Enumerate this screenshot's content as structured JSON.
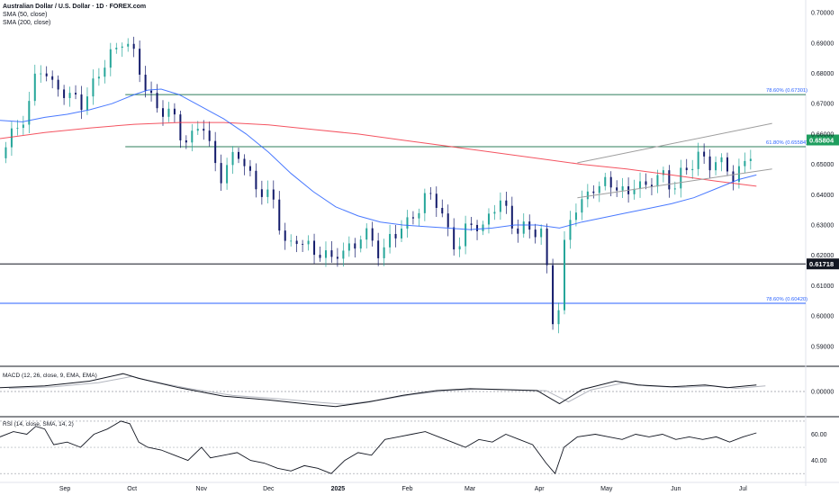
{
  "header": {
    "symbol": "Australian Dollar / U.S. Dollar · 1D · FOREX.com",
    "sma50": "SMA (50, close)",
    "sma200": "SMA (200, close)"
  },
  "macd": {
    "label": "MACD (12, 26, close, 9, EMA, EMA)"
  },
  "rsi": {
    "label": "RSI (14, close, SMA, 14, 2)"
  },
  "colors": {
    "up": "#26a69a",
    "down": "#131b6b",
    "sma50": "#2962ff",
    "sma200": "#f23645",
    "fib": "#2e7d5b",
    "channel": "#9e9e9e",
    "price_tag": "#1e9e5e"
  },
  "chart_data": {
    "type": "candlestick",
    "y_ticks": [
      "0.70000",
      "0.69000",
      "0.68000",
      "0.67000",
      "0.66000",
      "0.65000",
      "0.64000",
      "0.63000",
      "0.62000",
      "0.61000",
      "0.60000",
      "0.59000"
    ],
    "ylim": [
      0.5855,
      0.703
    ],
    "x_ticks": [
      {
        "label": "Sep",
        "day": 29
      },
      {
        "label": "Oct",
        "day": 59
      },
      {
        "label": "Nov",
        "day": 90
      },
      {
        "label": "Dec",
        "day": 120
      },
      {
        "label": "2025",
        "day": 151
      },
      {
        "label": "Feb",
        "day": 182
      },
      {
        "label": "Mar",
        "day": 210
      },
      {
        "label": "Apr",
        "day": 241
      },
      {
        "label": "May",
        "day": 271
      },
      {
        "label": "Jun",
        "day": 302
      },
      {
        "label": "Jul",
        "day": 332
      }
    ],
    "xlim": [
      0,
      360
    ],
    "levels": [
      {
        "label": "78.60% (0.67301)",
        "value": 0.67301,
        "style": "fib"
      },
      {
        "label": "61.80% (0.65584)",
        "value": 0.65584,
        "style": "fib"
      },
      {
        "label": "78.60% (0.60420)",
        "value": 0.6042,
        "style": "fib-blue"
      },
      {
        "label": "0.61718",
        "value": 0.61718,
        "style": "black-tag"
      }
    ],
    "last_price": {
      "label": "0.65804",
      "value": 0.65804
    },
    "close_path": [
      [
        0,
        0.652
      ],
      [
        4,
        0.659
      ],
      [
        8,
        0.661
      ],
      [
        12,
        0.67
      ],
      [
        16,
        0.678
      ],
      [
        20,
        0.681
      ],
      [
        24,
        0.676
      ],
      [
        28,
        0.675
      ],
      [
        32,
        0.671
      ],
      [
        36,
        0.669
      ],
      [
        40,
        0.676
      ],
      [
        44,
        0.679
      ],
      [
        48,
        0.684
      ],
      [
        52,
        0.688
      ],
      [
        55,
        0.693
      ],
      [
        58,
        0.689
      ],
      [
        61,
        0.683
      ],
      [
        64,
        0.676
      ],
      [
        67,
        0.673
      ],
      [
        70,
        0.67
      ],
      [
        74,
        0.667
      ],
      [
        78,
        0.664
      ],
      [
        82,
        0.658
      ],
      [
        86,
        0.66
      ],
      [
        90,
        0.664
      ],
      [
        93,
        0.656
      ],
      [
        96,
        0.651
      ],
      [
        99,
        0.647
      ],
      [
        102,
        0.65
      ],
      [
        106,
        0.653
      ],
      [
        110,
        0.649
      ],
      [
        114,
        0.644
      ],
      [
        118,
        0.64
      ],
      [
        122,
        0.637
      ],
      [
        126,
        0.628
      ],
      [
        129,
        0.623
      ],
      [
        132,
        0.625
      ],
      [
        136,
        0.623
      ],
      [
        140,
        0.621
      ],
      [
        144,
        0.623
      ],
      [
        148,
        0.617
      ],
      [
        151,
        0.62
      ],
      [
        154,
        0.622
      ],
      [
        158,
        0.624
      ],
      [
        162,
        0.627
      ],
      [
        166,
        0.624
      ],
      [
        170,
        0.621
      ],
      [
        174,
        0.626
      ],
      [
        178,
        0.627
      ],
      [
        182,
        0.63
      ],
      [
        186,
        0.636
      ],
      [
        190,
        0.639
      ],
      [
        194,
        0.638
      ],
      [
        198,
        0.633
      ],
      [
        202,
        0.625
      ],
      [
        205,
        0.623
      ],
      [
        208,
        0.627
      ],
      [
        212,
        0.631
      ],
      [
        216,
        0.63
      ],
      [
        220,
        0.635
      ],
      [
        224,
        0.637
      ],
      [
        227,
        0.633
      ],
      [
        230,
        0.63
      ],
      [
        234,
        0.629
      ],
      [
        238,
        0.626
      ],
      [
        241,
        0.629
      ],
      [
        243,
        0.627
      ],
      [
        245,
        0.612
      ],
      [
        247,
        0.6
      ],
      [
        249,
        0.596
      ],
      [
        251,
        0.615
      ],
      [
        253,
        0.626
      ],
      [
        256,
        0.636
      ],
      [
        260,
        0.638
      ],
      [
        264,
        0.642
      ],
      [
        268,
        0.641
      ],
      [
        272,
        0.646
      ],
      [
        276,
        0.643
      ],
      [
        280,
        0.638
      ],
      [
        284,
        0.644
      ],
      [
        288,
        0.643
      ],
      [
        292,
        0.646
      ],
      [
        296,
        0.645
      ],
      [
        300,
        0.642
      ],
      [
        304,
        0.648
      ],
      [
        308,
        0.648
      ],
      [
        312,
        0.652
      ],
      [
        316,
        0.651
      ],
      [
        320,
        0.652
      ],
      [
        324,
        0.648
      ],
      [
        328,
        0.645
      ],
      [
        332,
        0.651
      ],
      [
        336,
        0.655
      ],
      [
        338,
        0.658
      ]
    ],
    "sma50_path": [
      [
        0,
        0.6645
      ],
      [
        10,
        0.664
      ],
      [
        20,
        0.6655
      ],
      [
        30,
        0.6665
      ],
      [
        40,
        0.668
      ],
      [
        50,
        0.67
      ],
      [
        60,
        0.673
      ],
      [
        66,
        0.6745
      ],
      [
        72,
        0.6748
      ],
      [
        80,
        0.673
      ],
      [
        90,
        0.669
      ],
      [
        100,
        0.665
      ],
      [
        110,
        0.66
      ],
      [
        120,
        0.654
      ],
      [
        130,
        0.647
      ],
      [
        140,
        0.641
      ],
      [
        150,
        0.636
      ],
      [
        160,
        0.633
      ],
      [
        170,
        0.631
      ],
      [
        180,
        0.63
      ],
      [
        190,
        0.6295
      ],
      [
        200,
        0.629
      ],
      [
        210,
        0.6285
      ],
      [
        220,
        0.629
      ],
      [
        230,
        0.63
      ],
      [
        240,
        0.63
      ],
      [
        250,
        0.629
      ],
      [
        260,
        0.631
      ],
      [
        270,
        0.6325
      ],
      [
        280,
        0.634
      ],
      [
        290,
        0.6355
      ],
      [
        300,
        0.637
      ],
      [
        310,
        0.639
      ],
      [
        320,
        0.642
      ],
      [
        330,
        0.645
      ],
      [
        338,
        0.6465
      ]
    ],
    "sma200_path": [
      [
        0,
        0.6585
      ],
      [
        20,
        0.6605
      ],
      [
        40,
        0.662
      ],
      [
        60,
        0.6632
      ],
      [
        80,
        0.6638
      ],
      [
        100,
        0.6638
      ],
      [
        120,
        0.663
      ],
      [
        140,
        0.6615
      ],
      [
        160,
        0.66
      ],
      [
        180,
        0.658
      ],
      [
        200,
        0.656
      ],
      [
        220,
        0.654
      ],
      [
        240,
        0.652
      ],
      [
        260,
        0.65
      ],
      [
        280,
        0.6485
      ],
      [
        300,
        0.6465
      ],
      [
        320,
        0.6445
      ],
      [
        338,
        0.6428
      ]
    ],
    "channel_upper": [
      [
        258,
        0.6505
      ],
      [
        345,
        0.6635
      ]
    ],
    "channel_lower": [
      [
        258,
        0.639
      ],
      [
        345,
        0.6485
      ]
    ],
    "macd_path": [
      [
        0,
        0.2
      ],
      [
        20,
        0.3
      ],
      [
        40,
        0.55
      ],
      [
        55,
        0.95
      ],
      [
        62,
        0.7
      ],
      [
        80,
        0.2
      ],
      [
        100,
        -0.25
      ],
      [
        120,
        -0.45
      ],
      [
        140,
        -0.7
      ],
      [
        150,
        -0.8
      ],
      [
        165,
        -0.55
      ],
      [
        180,
        -0.2
      ],
      [
        195,
        0.05
      ],
      [
        210,
        0.15
      ],
      [
        225,
        0.1
      ],
      [
        240,
        0.05
      ],
      [
        245,
        -0.3
      ],
      [
        250,
        -0.65
      ],
      [
        260,
        0.1
      ],
      [
        275,
        0.55
      ],
      [
        285,
        0.35
      ],
      [
        300,
        0.25
      ],
      [
        315,
        0.35
      ],
      [
        325,
        0.2
      ],
      [
        338,
        0.35
      ]
    ],
    "macd_ylim": [
      -1.2,
      1.2
    ],
    "macd_tick": "0.00000",
    "rsi_path": [
      [
        0,
        58
      ],
      [
        6,
        62
      ],
      [
        12,
        60
      ],
      [
        16,
        66
      ],
      [
        20,
        64
      ],
      [
        24,
        52
      ],
      [
        30,
        54
      ],
      [
        36,
        50
      ],
      [
        42,
        60
      ],
      [
        48,
        64
      ],
      [
        54,
        70
      ],
      [
        58,
        68
      ],
      [
        62,
        54
      ],
      [
        66,
        50
      ],
      [
        72,
        48
      ],
      [
        78,
        44
      ],
      [
        84,
        40
      ],
      [
        90,
        50
      ],
      [
        94,
        42
      ],
      [
        100,
        44
      ],
      [
        106,
        46
      ],
      [
        112,
        40
      ],
      [
        118,
        38
      ],
      [
        124,
        34
      ],
      [
        130,
        32
      ],
      [
        136,
        36
      ],
      [
        142,
        34
      ],
      [
        148,
        30
      ],
      [
        154,
        40
      ],
      [
        160,
        46
      ],
      [
        166,
        44
      ],
      [
        172,
        56
      ],
      [
        178,
        58
      ],
      [
        184,
        60
      ],
      [
        190,
        62
      ],
      [
        196,
        58
      ],
      [
        202,
        54
      ],
      [
        208,
        50
      ],
      [
        214,
        56
      ],
      [
        220,
        54
      ],
      [
        226,
        60
      ],
      [
        232,
        56
      ],
      [
        238,
        52
      ],
      [
        244,
        38
      ],
      [
        248,
        30
      ],
      [
        252,
        50
      ],
      [
        258,
        58
      ],
      [
        266,
        60
      ],
      [
        272,
        58
      ],
      [
        278,
        56
      ],
      [
        284,
        60
      ],
      [
        290,
        58
      ],
      [
        296,
        60
      ],
      [
        302,
        56
      ],
      [
        308,
        58
      ],
      [
        314,
        56
      ],
      [
        320,
        58
      ],
      [
        326,
        54
      ],
      [
        332,
        58
      ],
      [
        338,
        61
      ]
    ],
    "rsi_ylim": [
      26,
      72
    ],
    "rsi_ticks": [
      "60.00",
      "40.00"
    ],
    "rsi_band": [
      70,
      30
    ]
  }
}
